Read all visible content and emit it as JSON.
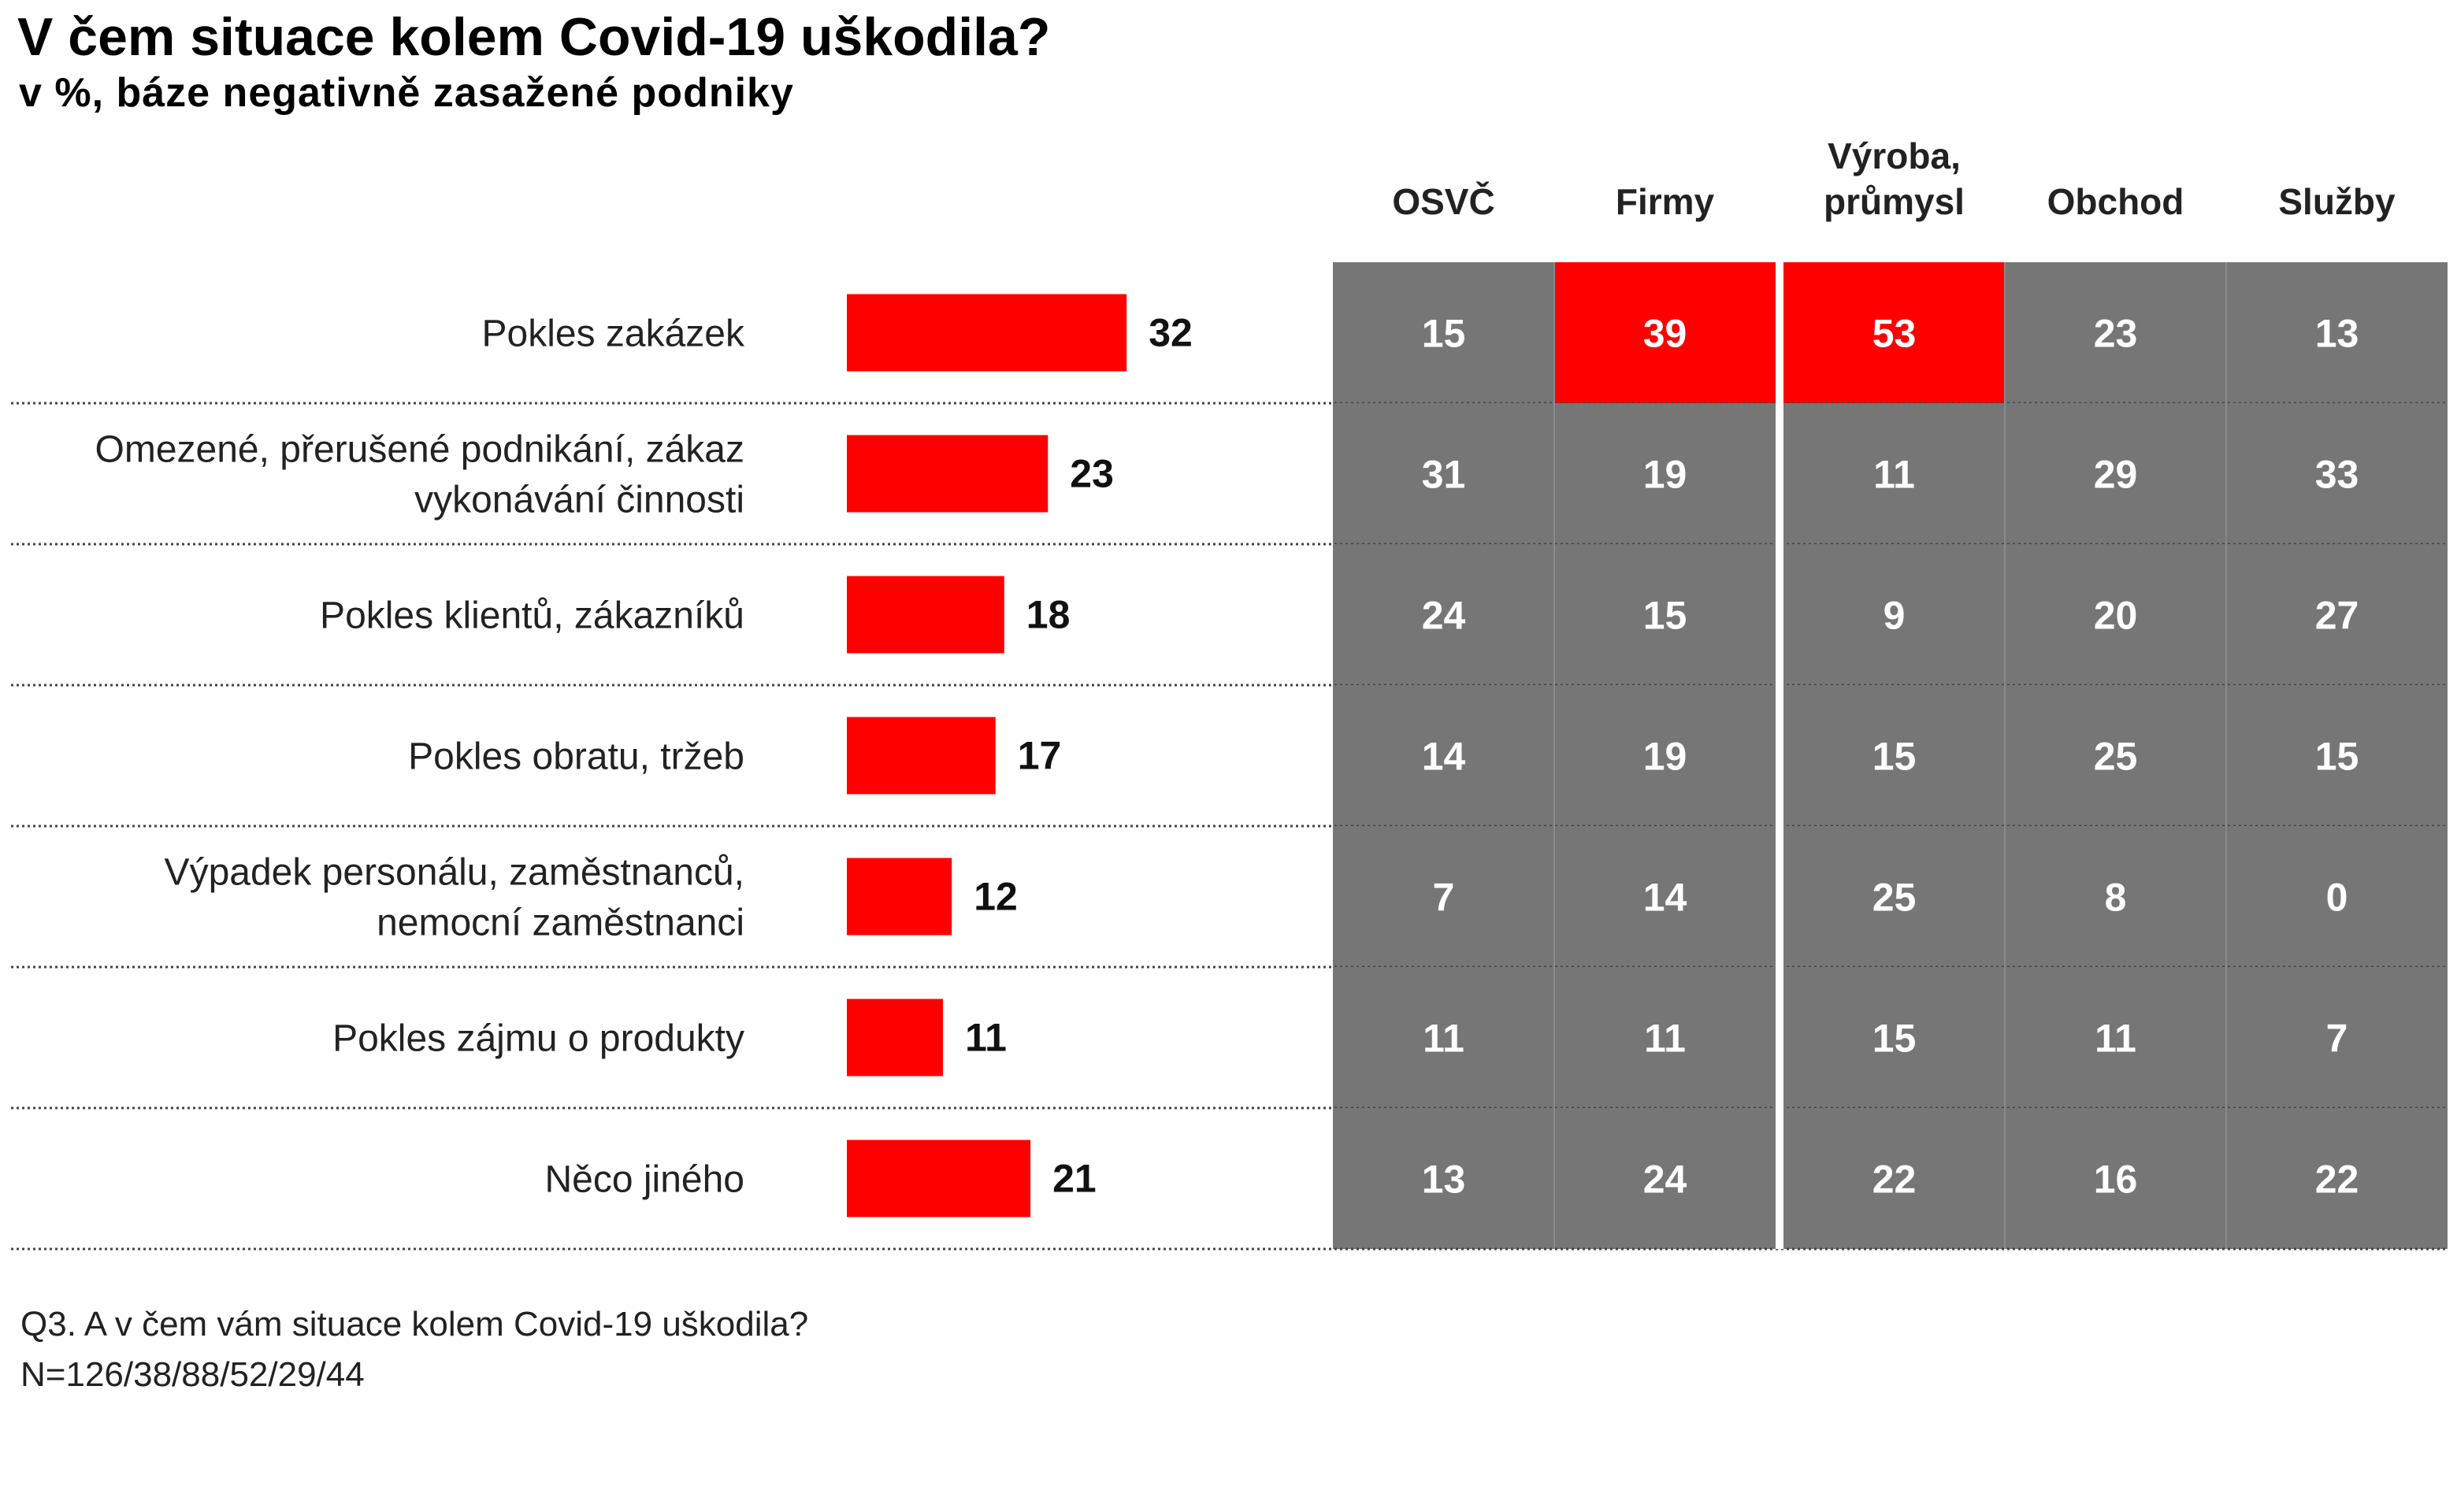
{
  "title": "V čem situace kolem Covid-19 uškodila?",
  "subtitle": "v %, báze negativně zasažené podniky",
  "colors": {
    "bar": "#ff0000",
    "cell": "#767676",
    "highlight": "#ff0000",
    "cell_text": "#ffffff",
    "divider": "#444444"
  },
  "chart_data": {
    "type": "bar",
    "orientation": "horizontal",
    "categories": [
      [
        "Pokles zakázek"
      ],
      [
        "Omezené, přerušené podnikání, zákaz",
        "vykonávání činnosti"
      ],
      [
        "Pokles klientů, zákazníků"
      ],
      [
        "Pokles obratu, tržeb"
      ],
      [
        "Výpadek personálu, zaměstnanců,",
        "nemocní zaměstnanci"
      ],
      [
        "Pokles zájmu o produkty"
      ],
      [
        "Něco jiného"
      ]
    ],
    "values": [
      32,
      23,
      18,
      17,
      12,
      11,
      21
    ],
    "table": {
      "columns": [
        [
          "OSVČ"
        ],
        [
          "Firmy"
        ],
        [
          "Výroba,",
          "průmysl"
        ],
        [
          "Obchod"
        ],
        [
          "Služby"
        ]
      ],
      "rows": [
        [
          15,
          39,
          53,
          23,
          13
        ],
        [
          31,
          19,
          11,
          29,
          33
        ],
        [
          24,
          15,
          9,
          20,
          27
        ],
        [
          14,
          19,
          15,
          25,
          15
        ],
        [
          7,
          14,
          25,
          8,
          0
        ],
        [
          11,
          11,
          15,
          11,
          7
        ],
        [
          13,
          24,
          22,
          16,
          22
        ]
      ],
      "highlighted": [
        [
          0,
          1
        ],
        [
          0,
          2
        ]
      ]
    }
  },
  "footer": {
    "question": "Q3. A v čem vám situace kolem Covid-19 uškodila?",
    "n": "N=126/38/88/52/29/44"
  }
}
